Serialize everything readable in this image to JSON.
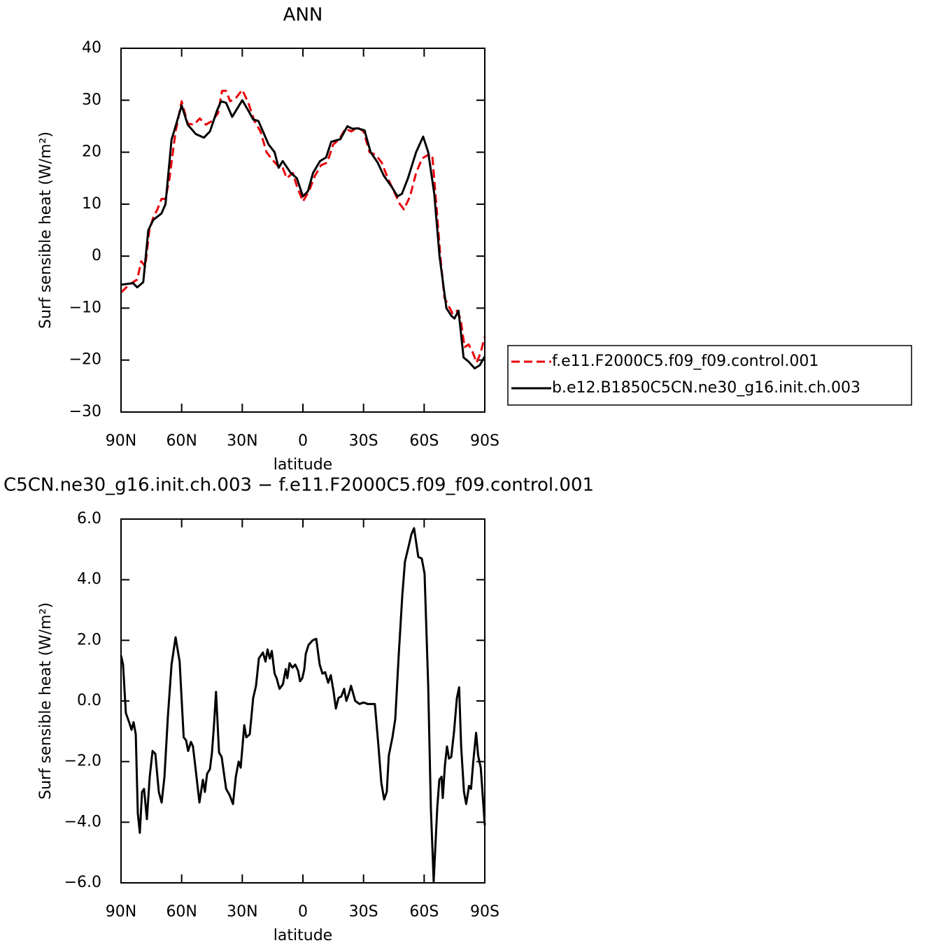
{
  "chart_data": [
    {
      "type": "line",
      "title": "ANN",
      "xlabel": "latitude",
      "ylabel": "Surf  sensible heat (W/m²)",
      "xlim": [
        90,
        -90
      ],
      "ylim": [
        -30,
        40
      ],
      "xticks": [
        {
          "value": 90,
          "label": "90N"
        },
        {
          "value": 60,
          "label": "60N"
        },
        {
          "value": 30,
          "label": "30N"
        },
        0,
        {
          "value": -30,
          "label": "30S"
        },
        {
          "value": -60,
          "label": "60S"
        },
        {
          "value": -90,
          "label": "90S"
        }
      ],
      "yticks": [
        {
          "value": -30,
          "label": "−30"
        },
        {
          "value": -20,
          "label": "−20"
        },
        {
          "value": -10,
          "label": "−10"
        },
        0,
        10,
        20,
        30,
        40
      ],
      "legend": "right",
      "series": [
        {
          "name": "f.e11.F2000C5.f09_f09.control.001",
          "color": "#e8000b",
          "dashed": true,
          "x": [
            90,
            86,
            82,
            80,
            78,
            76,
            74,
            72,
            70,
            68,
            66,
            63,
            60,
            57,
            54,
            51,
            48,
            45,
            42,
            40,
            38,
            36,
            33,
            30,
            27,
            24,
            21,
            18,
            15,
            12,
            10,
            8,
            5,
            3,
            0,
            -3,
            -6,
            -9,
            -12,
            -15,
            -18,
            -21,
            -24,
            -27,
            -30,
            -33,
            -36,
            -39,
            -42,
            -45,
            -48,
            -50,
            -53,
            -56,
            -59,
            -62,
            -64,
            -66,
            -68,
            -70,
            -72,
            -74,
            -76,
            -78,
            -80,
            -82,
            -84,
            -86,
            -88,
            -90
          ],
          "values": [
            -7,
            -5.5,
            -4.5,
            -1,
            -2,
            5,
            7.5,
            9,
            11,
            11,
            15,
            24,
            29.8,
            25.5,
            25.3,
            26.5,
            25.3,
            26,
            27.5,
            31.8,
            31.8,
            29.8,
            30.5,
            32,
            29.5,
            26,
            24,
            20,
            18.5,
            17.2,
            17,
            15,
            16,
            13.5,
            10.5,
            12.5,
            15.5,
            17.5,
            18,
            21.5,
            22.5,
            24.5,
            24,
            24.8,
            24,
            20,
            19.5,
            18,
            15,
            12.5,
            10,
            9,
            11.5,
            16,
            18.8,
            19.5,
            19.5,
            10,
            0,
            -8,
            -9.5,
            -11,
            -10.5,
            -12,
            -17.5,
            -17,
            -18.5,
            -20.5,
            -18.5,
            -15.5
          ]
        },
        {
          "name": "b.e12.B1850C5CN.ne30_g16.init.ch.003",
          "color": "#000000",
          "dashed": false,
          "x": [
            90,
            84,
            82,
            79,
            76.5,
            74,
            70,
            68,
            65,
            63,
            60,
            57,
            53,
            49,
            46,
            42.5,
            40.5,
            38,
            35,
            30,
            27,
            24.6,
            22,
            17,
            14,
            12,
            10,
            6,
            3,
            0,
            -2.5,
            -5,
            -8.5,
            -11.5,
            -14,
            -18.5,
            -22,
            -24.5,
            -27,
            -30.5,
            -33.5,
            -37,
            -40,
            -44,
            -46.8,
            -49,
            -52,
            -56,
            -59.5,
            -62,
            -65,
            -67.6,
            -71,
            -73.5,
            -75,
            -77,
            -79.5,
            -82,
            -85,
            -87.5,
            -90
          ],
          "values": [
            -5.5,
            -5.2,
            -6,
            -5,
            5,
            7,
            8.2,
            10,
            22.4,
            25,
            29,
            25.3,
            23.5,
            22.8,
            24,
            28,
            29.8,
            29.5,
            26.8,
            30,
            28,
            26.3,
            26,
            21.5,
            20,
            17,
            18.3,
            16,
            15,
            11.5,
            12.5,
            16,
            18.3,
            19,
            22,
            22.5,
            25,
            24.5,
            24.6,
            24.2,
            20,
            18,
            15.5,
            13.3,
            11.5,
            12,
            15,
            20,
            23,
            20,
            12,
            0,
            -10,
            -11.5,
            -12,
            -10.5,
            -19.5,
            -20.3,
            -21.6,
            -21,
            -19.3
          ]
        }
      ]
    },
    {
      "type": "line",
      "title": "C5CN.ne30_g16.init.ch.003 − f.e11.F2000C5.f09_f09.control.001",
      "xlabel": "latitude",
      "ylabel": "Surf  sensible heat (W/m²)",
      "xlim": [
        90,
        -90
      ],
      "ylim": [
        -6,
        6
      ],
      "xticks": [
        {
          "value": 90,
          "label": "90N"
        },
        {
          "value": 60,
          "label": "60N"
        },
        {
          "value": 30,
          "label": "30N"
        },
        0,
        {
          "value": -30,
          "label": "30S"
        },
        {
          "value": -60,
          "label": "60S"
        },
        {
          "value": -90,
          "label": "90S"
        }
      ],
      "yticks": [
        {
          "value": -6,
          "label": "−6.0"
        },
        {
          "value": -4,
          "label": "−4.0"
        },
        {
          "value": -2,
          "label": "−2.0"
        },
        {
          "value": 0,
          "label": "0.0"
        },
        {
          "value": 2,
          "label": "2.0"
        },
        {
          "value": 4,
          "label": "4.0"
        },
        {
          "value": 6,
          "label": "6.0"
        }
      ],
      "series": [
        {
          "color": "#000000",
          "dashed": false,
          "x": [
            90,
            89,
            87.6,
            86,
            84.8,
            83.8,
            82.7,
            81.7,
            80.7,
            79.6,
            78.6,
            77.2,
            75.8,
            74.4,
            73,
            71.3,
            69.9,
            68.5,
            66.8,
            65,
            63,
            61,
            59,
            57.8,
            56.8,
            55.4,
            54.4,
            53,
            51.2,
            49.5,
            48.5,
            47.4,
            46,
            45,
            44,
            43,
            41.5,
            40.2,
            38,
            36.3,
            34.6,
            33.2,
            31.8,
            30.8,
            29,
            28,
            26.3,
            24.6,
            23.2,
            21.8,
            19.8,
            18.5,
            17.5,
            16.4,
            15.4,
            14,
            13,
            11.6,
            9.9,
            8.5,
            7.7,
            6.6,
            5.2,
            3.8,
            2.4,
            1.4,
            0.3,
            -0.7,
            -1.4,
            -2.8,
            -4.8,
            -6.6,
            -8.3,
            -9.7,
            -11,
            -12.5,
            -13.8,
            -15.2,
            -16.3,
            -17.6,
            -19,
            -20.4,
            -21.5,
            -22.8,
            -23.8,
            -25.9,
            -28,
            -30,
            -32,
            -33.6,
            -35.6,
            -37.4,
            -38.8,
            -40.2,
            -41.5,
            -42.5,
            -44.3,
            -45.7,
            -47.4,
            -49.2,
            -50.5,
            -52.3,
            -53.7,
            -55,
            -57.1,
            -58.8,
            -60.2,
            -62,
            -63.3,
            -64.7,
            -66.5,
            -67.5,
            -68.6,
            -69.2,
            -70.3,
            -71.3,
            -72.3,
            -73.4,
            -74.8,
            -76.2,
            -77.3,
            -78.3,
            -79.7,
            -80.8,
            -82.2,
            -83.2,
            -84.3,
            -85.7,
            -86.7,
            -88,
            -90
          ],
          "values": [
            1.5,
            1.2,
            -0.4,
            -0.7,
            -0.95,
            -0.7,
            -1.1,
            -3.7,
            -4.35,
            -3,
            -2.9,
            -3.9,
            -2.5,
            -1.65,
            -1.75,
            -3,
            -3.35,
            -2.5,
            -0.5,
            1.2,
            2.1,
            1.3,
            -1.2,
            -1.3,
            -1.65,
            -1.35,
            -1.5,
            -2.3,
            -3.35,
            -2.6,
            -3,
            -2.4,
            -2.25,
            -1.7,
            -0.8,
            0.3,
            -1.7,
            -1.85,
            -2.9,
            -3.1,
            -3.4,
            -2.5,
            -2,
            -2.2,
            -0.8,
            -1.2,
            -1.1,
            0.1,
            0.5,
            1.4,
            1.6,
            1.3,
            1.7,
            1.4,
            1.65,
            0.9,
            0.75,
            0.4,
            0.55,
            1.05,
            0.75,
            1.25,
            1.1,
            1.2,
            1,
            0.65,
            0.75,
            1.05,
            1.55,
            1.85,
            2,
            2.05,
            1.2,
            0.9,
            0.95,
            0.6,
            0.85,
            0.3,
            -0.25,
            0.1,
            0.15,
            0.4,
            0,
            0.25,
            0.5,
            0,
            -0.1,
            -0.05,
            -0.1,
            -0.1,
            -0.1,
            -1.5,
            -2.7,
            -3.25,
            -3,
            -1.8,
            -1.2,
            -0.6,
            1.5,
            3.5,
            4.6,
            5.1,
            5.5,
            5.7,
            4.75,
            4.7,
            4.2,
            0.5,
            -3.5,
            -5.95,
            -3.5,
            -2.6,
            -2.5,
            -3.2,
            -2.1,
            -1.5,
            -1.9,
            -1.85,
            -1,
            0.1,
            0.45,
            -1.5,
            -3,
            -3.4,
            -2.8,
            -2.9,
            -2,
            -1.05,
            -1.8,
            -2.2,
            -4.1
          ]
        }
      ]
    }
  ]
}
